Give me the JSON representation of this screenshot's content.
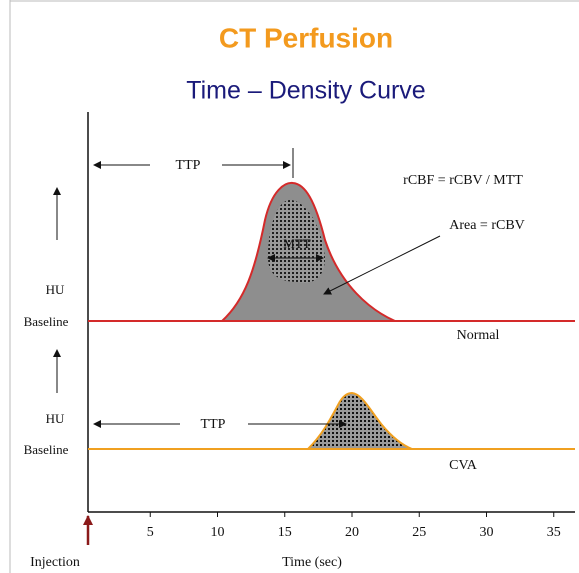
{
  "title": "CT Perfusion",
  "subtitle": "Time – Density Curve",
  "formula": "rCBF = rCBV / MTT",
  "normal": {
    "ttp_label": "TTP",
    "mtt_label": "MTT",
    "area_label": "Area = rCBV",
    "hu_label": "HU",
    "baseline_label": "Baseline",
    "curve_label": "Normal"
  },
  "cva": {
    "ttp_label": "TTP",
    "hu_label": "HU",
    "baseline_label": "Baseline",
    "curve_label": "CVA"
  },
  "x_axis": {
    "ticks": [
      5,
      10,
      15,
      20,
      25,
      30,
      35
    ],
    "label": "Time (sec)",
    "origin_label": "Injection"
  }
}
